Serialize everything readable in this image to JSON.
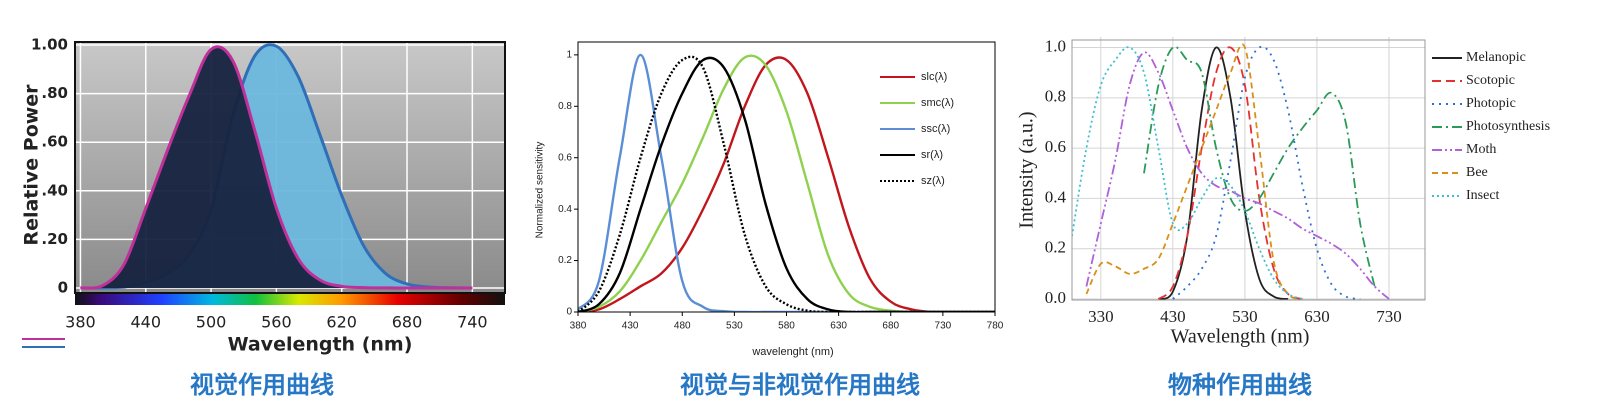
{
  "chart_data": [
    {
      "type": "area",
      "caption": "视觉作用曲线",
      "ylabel": "Relative Power",
      "xlabel": "Wavelength (nm)",
      "x": [
        380,
        400,
        420,
        440,
        460,
        480,
        500,
        520,
        540,
        560,
        580,
        600,
        620,
        640,
        660,
        680,
        700,
        720,
        740
      ],
      "series": [
        {
          "color": "#c0309a",
          "fill": "#16233f",
          "values": [
            0.0006,
            0.009,
            0.097,
            0.328,
            0.567,
            0.793,
            0.982,
            0.935,
            0.65,
            0.329,
            0.121,
            0.033,
            0.007,
            0.0015,
            0.0003,
            0,
            0,
            0,
            0
          ]
        },
        {
          "color": "#2f6fb8",
          "fill": "#6bb8de",
          "values": [
            0,
            0.0004,
            0.004,
            0.023,
            0.06,
            0.139,
            0.323,
            0.71,
            0.954,
            0.995,
            0.87,
            0.631,
            0.381,
            0.175,
            0.061,
            0.017,
            0.004,
            0.001,
            0
          ]
        }
      ],
      "xlim": [
        375,
        770
      ],
      "xticks": [
        380,
        440,
        500,
        560,
        620,
        680,
        740
      ],
      "ylim": [
        0,
        1
      ],
      "yticks": [
        0,
        {
          "value": 0.2,
          "label": ".20"
        },
        {
          "value": 0.4,
          "label": ".40"
        },
        {
          "value": 0.6,
          "label": ".60"
        },
        {
          "value": 0.8,
          "label": ".80"
        },
        {
          "value": 1,
          "label": "1.00"
        }
      ],
      "grid": true,
      "legend": "bottom-left"
    },
    {
      "type": "line",
      "caption": "视觉与非视觉作用曲线",
      "ylabel": "Normalized sensitivity",
      "xlabel": "wavelenght (nm)",
      "x": [
        380,
        400,
        420,
        440,
        460,
        480,
        500,
        520,
        540,
        560,
        580,
        600,
        620,
        640,
        660,
        680,
        700,
        720,
        740,
        760,
        780
      ],
      "series": [
        {
          "name": "slc(λ)",
          "color": "#c0161c",
          "values": [
            0,
            0.01,
            0.05,
            0.1,
            0.15,
            0.25,
            0.4,
            0.58,
            0.8,
            0.96,
            0.98,
            0.85,
            0.6,
            0.33,
            0.13,
            0.04,
            0.01,
            0,
            0,
            0,
            0
          ]
        },
        {
          "name": "smc(λ)",
          "color": "#8fd14f",
          "values": [
            0,
            0.02,
            0.08,
            0.2,
            0.35,
            0.5,
            0.68,
            0.87,
            0.99,
            0.96,
            0.78,
            0.5,
            0.22,
            0.07,
            0.02,
            0.005,
            0,
            0,
            0,
            0,
            0
          ]
        },
        {
          "name": "ssc(λ)",
          "color": "#5b8ed6",
          "values": [
            0.01,
            0.12,
            0.6,
            1.0,
            0.6,
            0.12,
            0.02,
            0.003,
            0,
            0,
            0,
            0,
            0,
            0,
            0,
            0,
            0,
            0,
            0,
            0,
            0
          ]
        },
        {
          "name": "sr(λ)",
          "color": "#000000",
          "values": [
            0,
            0.03,
            0.15,
            0.4,
            0.65,
            0.85,
            0.98,
            0.95,
            0.75,
            0.42,
            0.17,
            0.05,
            0.01,
            0,
            0,
            0,
            0,
            0,
            0,
            0,
            0
          ]
        },
        {
          "name": "sz(λ)",
          "color": "#000000",
          "dash": "2,2",
          "values": [
            0,
            0.08,
            0.3,
            0.6,
            0.85,
            0.98,
            0.95,
            0.65,
            0.3,
            0.1,
            0.03,
            0.005,
            0,
            0,
            0,
            0,
            0,
            0,
            0,
            0,
            0
          ]
        }
      ],
      "xlim": [
        380,
        780
      ],
      "xticks": [
        380,
        430,
        480,
        530,
        580,
        630,
        680,
        730,
        780
      ],
      "ylim": [
        0,
        1.05
      ],
      "yticks": [
        0,
        0.2,
        0.4,
        0.6,
        0.8,
        1
      ],
      "grid": false,
      "legend": "upper-right"
    },
    {
      "type": "line",
      "caption": "物种作用曲线",
      "ylabel": "Intensity (a.u.)",
      "xlabel": "Wavelength (nm)",
      "x": [
        290,
        310,
        330,
        350,
        370,
        390,
        410,
        430,
        450,
        470,
        490,
        510,
        530,
        550,
        570,
        590,
        610,
        630,
        650,
        670,
        690,
        710,
        730,
        750,
        770
      ],
      "series": [
        {
          "name": "Melanopic",
          "color": "#222222",
          "values": [
            null,
            null,
            null,
            null,
            null,
            null,
            0,
            0.03,
            0.25,
            0.75,
            1.0,
            0.8,
            0.35,
            0.08,
            0.01,
            0,
            null,
            null,
            null,
            null,
            null,
            null,
            null,
            null,
            null
          ]
        },
        {
          "name": "Scotopic",
          "color": "#e53030",
          "dash": "9,5",
          "values": [
            null,
            null,
            null,
            null,
            null,
            null,
            0,
            0.05,
            0.25,
            0.6,
            0.9,
            1.0,
            0.85,
            0.4,
            0.12,
            0.02,
            0,
            null,
            null,
            null,
            null,
            null,
            null,
            null,
            null
          ]
        },
        {
          "name": "Photopic",
          "color": "#2b6fd6",
          "dash": "2,5",
          "values": [
            null,
            null,
            null,
            null,
            null,
            null,
            null,
            0,
            0.05,
            0.12,
            0.25,
            0.55,
            0.88,
            1.0,
            0.95,
            0.75,
            0.45,
            0.2,
            0.06,
            0.01,
            0,
            null,
            null,
            null,
            null
          ]
        },
        {
          "name": "Photosynthesis",
          "color": "#2a9a5a",
          "dash": "10,4,2,4",
          "values": [
            null,
            null,
            null,
            null,
            null,
            0.5,
            0.85,
            1.0,
            0.95,
            0.9,
            0.6,
            0.4,
            0.35,
            0.4,
            0.5,
            0.6,
            0.68,
            0.75,
            0.82,
            0.7,
            0.3,
            0.05,
            null,
            null,
            null
          ]
        },
        {
          "name": "Moth",
          "color": "#b060d8",
          "dash": "10,3,2,3,2,3",
          "values": [
            null,
            0.05,
            0.3,
            0.55,
            0.85,
            0.98,
            0.9,
            0.75,
            0.6,
            0.5,
            0.45,
            0.43,
            0.4,
            0.38,
            0.35,
            0.32,
            0.28,
            0.25,
            0.22,
            0.18,
            0.12,
            0.05,
            0,
            null,
            null
          ]
        },
        {
          "name": "Bee",
          "color": "#d9901a",
          "dash": "6,4",
          "values": [
            null,
            0.02,
            0.14,
            0.13,
            0.1,
            0.12,
            0.16,
            0.3,
            0.45,
            0.6,
            0.75,
            0.9,
            1.0,
            0.6,
            0.15,
            0.02,
            0,
            null,
            null,
            null,
            null,
            null,
            null,
            null,
            null
          ]
        },
        {
          "name": "Insect",
          "color": "#3cc0d0",
          "dash": "2,3",
          "values": [
            0.25,
            0.6,
            0.85,
            0.95,
            1.0,
            0.9,
            0.6,
            0.3,
            0.3,
            0.4,
            0.48,
            0.45,
            0.35,
            0.2,
            0.08,
            0.02,
            0,
            null,
            null,
            null,
            null,
            null,
            null,
            null,
            null
          ]
        }
      ],
      "xlim": [
        290,
        780
      ],
      "xticks": [
        330,
        430,
        530,
        630,
        730
      ],
      "ylim": [
        0,
        1.03
      ],
      "yticks": [
        {
          "value": 0,
          "label": "0.0"
        },
        0.2,
        0.4,
        0.6,
        0.8,
        {
          "value": 1,
          "label": "1.0"
        }
      ],
      "grid": true,
      "legend": "outside-right"
    }
  ]
}
